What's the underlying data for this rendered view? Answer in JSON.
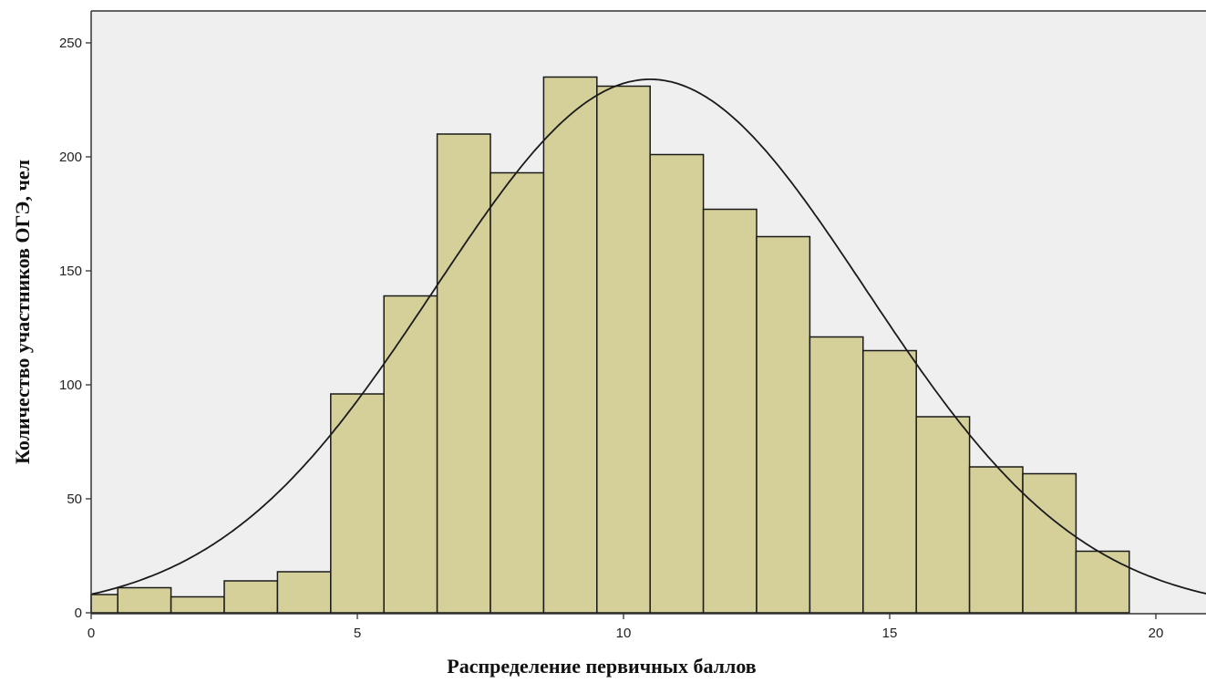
{
  "chart_data": {
    "type": "bar",
    "subtype": "histogram-with-normal-curve",
    "title": "",
    "xlabel": "Распределение первичных баллов",
    "ylabel": "Количество участников ОГЭ, чел",
    "xlim": [
      0,
      21
    ],
    "ylim": [
      0,
      260
    ],
    "x_ticks": [
      0,
      5,
      10,
      15,
      20
    ],
    "y_ticks": [
      0,
      50,
      100,
      150,
      200,
      250
    ],
    "grid": false,
    "legend": "none",
    "bins": [
      {
        "from": -0.5,
        "to": 0.5,
        "value": 8
      },
      {
        "from": 0.5,
        "to": 1.5,
        "value": 11
      },
      {
        "from": 1.5,
        "to": 2.5,
        "value": 7
      },
      {
        "from": 2.5,
        "to": 3.5,
        "value": 14
      },
      {
        "from": 3.5,
        "to": 4.5,
        "value": 18
      },
      {
        "from": 4.5,
        "to": 5.5,
        "value": 96
      },
      {
        "from": 5.5,
        "to": 6.5,
        "value": 139
      },
      {
        "from": 6.5,
        "to": 7.5,
        "value": 210
      },
      {
        "from": 7.5,
        "to": 8.5,
        "value": 193
      },
      {
        "from": 8.5,
        "to": 9.5,
        "value": 235
      },
      {
        "from": 9.5,
        "to": 10.5,
        "value": 231
      },
      {
        "from": 10.5,
        "to": 11.5,
        "value": 201
      },
      {
        "from": 11.5,
        "to": 12.5,
        "value": 177
      },
      {
        "from": 12.5,
        "to": 13.5,
        "value": 165
      },
      {
        "from": 13.5,
        "to": 14.5,
        "value": 121
      },
      {
        "from": 14.5,
        "to": 15.5,
        "value": 115
      },
      {
        "from": 15.5,
        "to": 16.5,
        "value": 86
      },
      {
        "from": 16.5,
        "to": 17.5,
        "value": 64
      },
      {
        "from": 17.5,
        "to": 18.5,
        "value": 61
      },
      {
        "from": 18.5,
        "to": 19.5,
        "value": 27
      }
    ],
    "normal_curve": {
      "mean": 10.5,
      "sd": 4.05,
      "peak": 234
    },
    "colors": {
      "bar_fill": "#d5cf99",
      "bar_stroke": "#1a1a1a",
      "plot_background": "#efefef",
      "curve": "#1a1a1a"
    }
  }
}
